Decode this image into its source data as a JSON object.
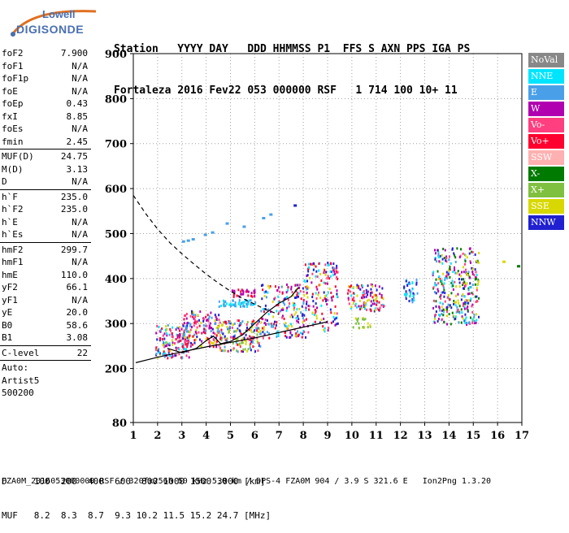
{
  "logo": {
    "top": "Lowell",
    "bottom": "DIGISONDE"
  },
  "header": {
    "line1": "Station   YYYY DAY   DDD HHMMSS P1  FFS S AXN PPS IGA PS",
    "line2": "Fortaleza 2016 Fev22 053 000000 RSF   1 714 100 10+ 11"
  },
  "params": [
    [
      {
        "label": "foF2",
        "value": "7.900"
      },
      {
        "label": "foF1",
        "value": "N/A"
      },
      {
        "label": "foF1p",
        "value": "N/A"
      },
      {
        "label": "foE",
        "value": "N/A"
      },
      {
        "label": "foEp",
        "value": "0.43"
      },
      {
        "label": "fxI",
        "value": "8.85"
      },
      {
        "label": "foEs",
        "value": "N/A"
      },
      {
        "label": "fmin",
        "value": "2.45"
      }
    ],
    [
      {
        "label": "MUF(D)",
        "value": "24.75"
      },
      {
        "label": "M(D)",
        "value": "3.13"
      },
      {
        "label": "D",
        "value": "N/A"
      }
    ],
    [
      {
        "label": "h`F",
        "value": "235.0"
      },
      {
        "label": "h`F2",
        "value": "235.0"
      },
      {
        "label": "h`E",
        "value": "N/A"
      },
      {
        "label": "h`Es",
        "value": "N/A"
      }
    ],
    [
      {
        "label": "hmF2",
        "value": "299.7"
      },
      {
        "label": "hmF1",
        "value": "N/A"
      },
      {
        "label": "hmE",
        "value": "110.0"
      },
      {
        "label": "yF2",
        "value": "66.1"
      },
      {
        "label": "yF1",
        "value": "N/A"
      },
      {
        "label": "yE",
        "value": "20.0"
      },
      {
        "label": "B0",
        "value": "58.6"
      },
      {
        "label": "B1",
        "value": "3.08"
      }
    ],
    [
      {
        "label": "C-level",
        "value": "22"
      }
    ],
    [
      {
        "label": "Auto:",
        "value": ""
      },
      {
        "label": "Artist5",
        "value": ""
      },
      {
        "label": "500200",
        "value": ""
      }
    ]
  ],
  "bottom": {
    "d_line": "D     100  200  400  600  800 1000 1500 3000 [km]",
    "muf_line": "MUF   8.2  8.3  8.7  9.3 10.2 11.5 15.2 24.7 [MHz]"
  },
  "footer": "FZA0M_2016053000000.RSF / 320fx256h 50 kHz 5.0 km / DPS-4 FZA0M 904 / 3.9 S 321.6 E   Ion2Png 1.3.20",
  "legend": [
    {
      "label": "NoVal",
      "color": "#888888"
    },
    {
      "label": "NNE",
      "color": "#00e5ff"
    },
    {
      "label": "E",
      "color": "#4aa0e8"
    },
    {
      "label": "W",
      "color": "#b000b0"
    },
    {
      "label": "Vo-",
      "color": "#ff3f80"
    },
    {
      "label": "Vo+",
      "color": "#ff0030"
    },
    {
      "label": "SSW",
      "color": "#ffb0b0"
    },
    {
      "label": "X-",
      "color": "#007a00"
    },
    {
      "label": "X+",
      "color": "#80c040"
    },
    {
      "label": "SSE",
      "color": "#d8d800"
    },
    {
      "label": "NNW",
      "color": "#2020d0"
    }
  ],
  "chart_data": {
    "type": "scatter",
    "x_ticks": [
      "1",
      "2",
      "3",
      "4",
      "5",
      "6",
      "7",
      "8",
      "9",
      "10",
      "11",
      "12",
      "13",
      "14",
      "15",
      "16",
      "17"
    ],
    "y_ticks": [
      "80",
      "200",
      "300",
      "400",
      "500",
      "600",
      "700",
      "800",
      "900"
    ],
    "xlim": [
      1,
      17
    ],
    "ylim": [
      80,
      900
    ],
    "grid": true,
    "clusters": [
      {
        "x": [
          1.9,
          3.3
        ],
        "y": [
          225,
          300
        ],
        "colors": [
          "NNE",
          "E",
          "W",
          "Vo-",
          "Vo+",
          "SSE",
          "NNW"
        ],
        "n": 160
      },
      {
        "x": [
          3.0,
          4.5
        ],
        "y": [
          250,
          330
        ],
        "colors": [
          "Vo+",
          "Vo-",
          "E",
          "SSE",
          "NNW",
          "W"
        ],
        "n": 140
      },
      {
        "x": [
          4.4,
          6.2
        ],
        "y": [
          240,
          310
        ],
        "colors": [
          "SSE",
          "Vo+",
          "Vo-",
          "NNW",
          "E",
          "X+"
        ],
        "n": 180
      },
      {
        "x": [
          4.5,
          6.0
        ],
        "y": [
          340,
          355
        ],
        "colors": [
          "E",
          "NNE"
        ],
        "n": 60
      },
      {
        "x": [
          5.0,
          6.0
        ],
        "y": [
          362,
          378
        ],
        "colors": [
          "W",
          "Vo+"
        ],
        "n": 30
      },
      {
        "x": [
          6.2,
          8.2
        ],
        "y": [
          270,
          390
        ],
        "colors": [
          "Vo+",
          "Vo-",
          "E",
          "SSE",
          "W",
          "NNW",
          "NNE"
        ],
        "n": 200
      },
      {
        "x": [
          8.0,
          9.4
        ],
        "y": [
          285,
          440
        ],
        "colors": [
          "Vo+",
          "SSE",
          "W",
          "NNW",
          "Vo-",
          "NNE"
        ],
        "n": 150
      },
      {
        "x": [
          9.8,
          11.3
        ],
        "y": [
          330,
          390
        ],
        "colors": [
          "Vo+",
          "Vo-",
          "W",
          "NNW",
          "NNE",
          "SSE"
        ],
        "n": 110
      },
      {
        "x": [
          10.0,
          10.8
        ],
        "y": [
          290,
          315
        ],
        "colors": [
          "SSE",
          "X+"
        ],
        "n": 20
      },
      {
        "x": [
          12.1,
          12.7
        ],
        "y": [
          350,
          400
        ],
        "colors": [
          "E",
          "NNE",
          "NNW"
        ],
        "n": 40
      },
      {
        "x": [
          13.3,
          15.2
        ],
        "y": [
          300,
          470
        ],
        "colors": [
          "NNW",
          "W",
          "E",
          "NNE",
          "Vo-",
          "SSE",
          "X-"
        ],
        "n": 320
      }
    ],
    "sparse_echoes": [
      {
        "x": 3.0,
        "y": 485,
        "color": "E"
      },
      {
        "x": 3.2,
        "y": 487,
        "color": "E"
      },
      {
        "x": 3.4,
        "y": 490,
        "color": "E"
      },
      {
        "x": 3.9,
        "y": 500,
        "color": "E"
      },
      {
        "x": 4.2,
        "y": 505,
        "color": "E"
      },
      {
        "x": 4.8,
        "y": 525,
        "color": "E"
      },
      {
        "x": 5.5,
        "y": 518,
        "color": "E"
      },
      {
        "x": 6.3,
        "y": 537,
        "color": "E"
      },
      {
        "x": 6.6,
        "y": 545,
        "color": "E"
      },
      {
        "x": 7.6,
        "y": 565,
        "color": "NNW"
      },
      {
        "x": 16.2,
        "y": 440,
        "color": "SSE"
      },
      {
        "x": 16.8,
        "y": 430,
        "color": "X-"
      }
    ],
    "curves": [
      {
        "style": "dashed",
        "x": [
          1.0,
          1.5,
          2.0,
          2.5,
          3.0,
          3.5,
          4.0,
          4.5,
          5.0,
          5.5,
          6.0,
          6.5,
          7.0
        ],
        "y": [
          585,
          545,
          510,
          480,
          455,
          432,
          410,
          390,
          372,
          356,
          343,
          330,
          320
        ]
      },
      {
        "style": "solid",
        "x": [
          1.1,
          2.0,
          3.0,
          4.0,
          5.0,
          6.0,
          7.0,
          8.0,
          9.0
        ],
        "y": [
          213,
          225,
          237,
          248,
          258,
          268,
          280,
          292,
          304
        ]
      },
      {
        "style": "solid",
        "x": [
          2.4,
          3.0,
          3.6,
          4.0,
          4.3,
          4.6,
          5.0,
          5.5,
          6.0,
          6.5,
          7.0,
          7.5,
          7.8
        ],
        "y": [
          245,
          235,
          245,
          262,
          272,
          255,
          260,
          275,
          300,
          325,
          345,
          360,
          380
        ]
      }
    ]
  }
}
